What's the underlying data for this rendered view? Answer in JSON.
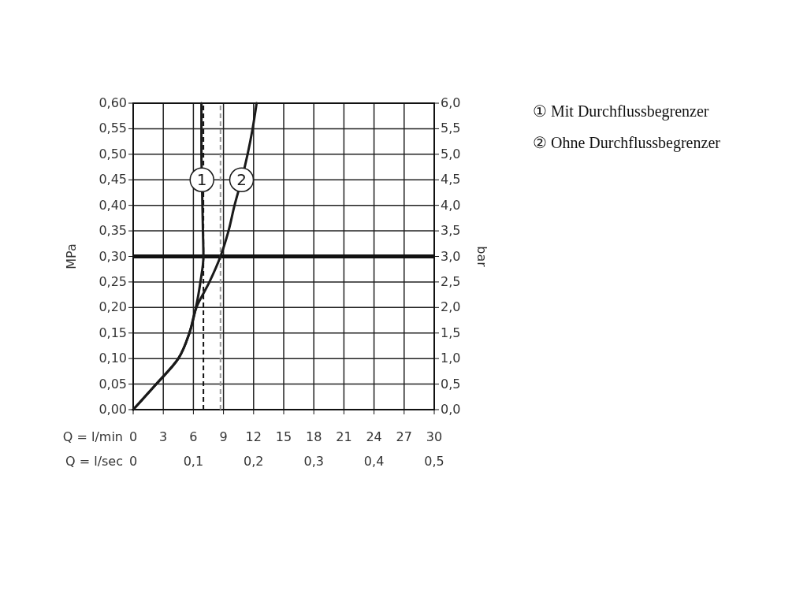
{
  "chart_data": {
    "type": "line",
    "xlabel": "Q = l/min",
    "x2label": "Q = l/sec",
    "ylabel": "MPa",
    "y2label": "bar",
    "xlim": [
      0,
      30
    ],
    "xticks": [
      0,
      3,
      6,
      9,
      12,
      15,
      18,
      21,
      24,
      27,
      30
    ],
    "x2lim": [
      0,
      0.5
    ],
    "x2ticks": [
      0,
      {
        "value": 0.1,
        "label": "0,1"
      },
      {
        "value": 0.2,
        "label": "0,2"
      },
      {
        "value": 0.3,
        "label": "0,3"
      },
      {
        "value": 0.4,
        "label": "0,4"
      },
      {
        "value": 0.5,
        "label": "0,5"
      }
    ],
    "ylim": [
      0,
      0.6
    ],
    "yticks": [
      {
        "value": 0,
        "label": "0,00"
      },
      {
        "value": 0.05,
        "label": "0,05"
      },
      {
        "value": 0.1,
        "label": "0,10"
      },
      {
        "value": 0.15,
        "label": "0,15"
      },
      {
        "value": 0.2,
        "label": "0,20"
      },
      {
        "value": 0.25,
        "label": "0,25"
      },
      {
        "value": 0.3,
        "label": "0,30"
      },
      {
        "value": 0.35,
        "label": "0,35"
      },
      {
        "value": 0.4,
        "label": "0,40"
      },
      {
        "value": 0.45,
        "label": "0,45"
      },
      {
        "value": 0.5,
        "label": "0,50"
      },
      {
        "value": 0.55,
        "label": "0,55"
      },
      {
        "value": 0.6,
        "label": "0,60"
      }
    ],
    "y2lim": [
      0,
      6
    ],
    "y2ticks": [
      {
        "value": 0,
        "label": "0,0"
      },
      {
        "value": 0.5,
        "label": "0,5"
      },
      {
        "value": 1,
        "label": "1,0"
      },
      {
        "value": 1.5,
        "label": "1,5"
      },
      {
        "value": 2,
        "label": "2,0"
      },
      {
        "value": 2.5,
        "label": "2,5"
      },
      {
        "value": 3,
        "label": "3,0"
      },
      {
        "value": 3.5,
        "label": "3,5"
      },
      {
        "value": 4,
        "label": "4,0"
      },
      {
        "value": 4.5,
        "label": "4,5"
      },
      {
        "value": 5,
        "label": "5,0"
      },
      {
        "value": 5.5,
        "label": "5,5"
      },
      {
        "value": 6,
        "label": "6,0"
      }
    ],
    "grid": true,
    "marker": "none",
    "line_style": "solid",
    "series": [
      {
        "name": "1",
        "color": "#1a1a1a",
        "x": [
          0,
          2.3,
          4.5,
          5.6,
          6.25,
          6.7,
          7.0,
          6.95,
          6.9,
          6.85,
          6.8,
          6.8,
          6.8
        ],
        "values": [
          0,
          0.05,
          0.1,
          0.15,
          0.2,
          0.25,
          0.3,
          0.35,
          0.4,
          0.45,
          0.5,
          0.55,
          0.6
        ]
      },
      {
        "name": "2",
        "color": "#1a1a1a",
        "x": [
          0,
          2.3,
          4.5,
          5.6,
          6.3,
          7.6,
          8.7,
          9.5,
          10.1,
          10.8,
          11.4,
          11.9,
          12.3
        ],
        "values": [
          0,
          0.05,
          0.1,
          0.15,
          0.2,
          0.25,
          0.3,
          0.35,
          0.4,
          0.45,
          0.5,
          0.55,
          0.6
        ]
      }
    ],
    "ref_lines": [
      {
        "axis": "y",
        "value": 0.3,
        "color": "#111111",
        "line_style": "solid"
      },
      {
        "axis": "x",
        "value": 7.0,
        "color": "#111111",
        "line_style": "dashed"
      },
      {
        "axis": "x",
        "value": 8.7,
        "color": "#999999",
        "line_style": "dashed"
      }
    ],
    "annotations": [
      "① Mit Durchflussbegrenzer",
      "② Ohne Durchflussbegrenzer"
    ]
  }
}
